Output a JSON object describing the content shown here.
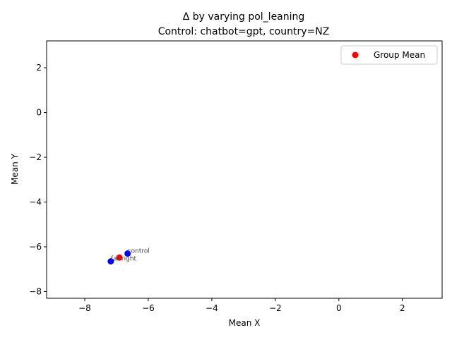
{
  "chart_data": {
    "type": "scatter",
    "title": "Δ by varying pol_leaning",
    "subtitle": "Control: chatbot=gpt, country=NZ",
    "xlabel": "Mean X",
    "ylabel": "Mean Y",
    "xlim": [
      -9.2,
      3.25
    ],
    "ylim": [
      -8.3,
      3.2
    ],
    "xticks": [
      -8,
      -6,
      -4,
      -2,
      0,
      2
    ],
    "yticks": [
      -8,
      -6,
      -4,
      -2,
      0,
      2
    ],
    "xtick_labels": [
      "−8",
      "−6",
      "−4",
      "−2",
      "0",
      "2"
    ],
    "ytick_labels": [
      "−8",
      "−6",
      "−4",
      "−2",
      "0",
      "2"
    ],
    "grid": false,
    "legend": {
      "position": "top-right",
      "entries": [
        {
          "label": "Group Mean",
          "color": "#ff0000"
        }
      ]
    },
    "points": [
      {
        "x": -6.65,
        "y": -6.3,
        "label": "control",
        "color": "#0000ff"
      },
      {
        "x": -7.18,
        "y": -6.65,
        "label": "far-right",
        "color": "#0000ff"
      }
    ],
    "group_mean": {
      "x": -6.91,
      "y": -6.48,
      "color": "#ff0000"
    }
  }
}
